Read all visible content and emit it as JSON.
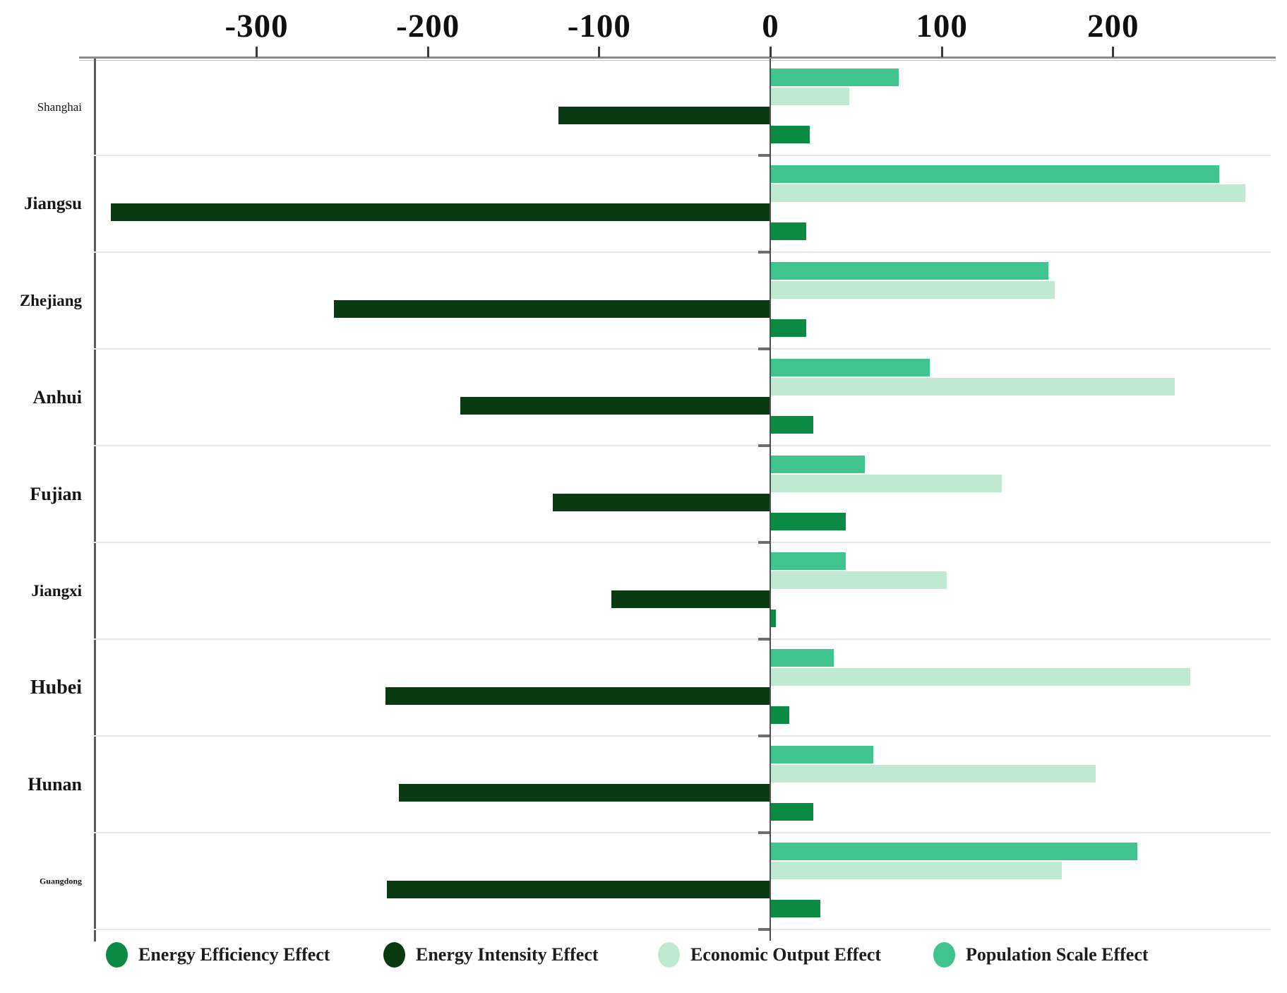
{
  "page": {
    "background": "#ffffff"
  },
  "chart_data": {
    "type": "bar",
    "orientation": "horizontal",
    "title": "",
    "xlabel": "",
    "ylabel": "",
    "categories": [
      "Shanghai",
      "Jiangsu",
      "Zhejiang",
      "Anhui",
      "Fujian",
      "Jiangxi",
      "Hubei",
      "Hunan",
      "Guangdong"
    ],
    "series": [
      {
        "name": "Energy Efficiency Effect",
        "color_key": "efficiency",
        "values": [
          23,
          21,
          21,
          25,
          44,
          3,
          11,
          25,
          29
        ]
      },
      {
        "name": "Energy Intensity Effect",
        "color_key": "intensity",
        "values": [
          -124,
          -385,
          -255,
          -181,
          -127,
          -93,
          -225,
          -217,
          -224
        ]
      },
      {
        "name": "Economic Output Effect",
        "color_key": "economic",
        "values": [
          46,
          277,
          166,
          236,
          135,
          103,
          245,
          190,
          170
        ]
      },
      {
        "name": "Population Scale Effect",
        "color_key": "population",
        "values": [
          75,
          262,
          162,
          93,
          55,
          44,
          37,
          60,
          214
        ]
      }
    ],
    "row_series_order_top_to_bottom": [
      3,
      2,
      1,
      0
    ],
    "x_ticks": [
      -300,
      -200,
      -100,
      0,
      100,
      200
    ],
    "xlim": [
      -395,
      292
    ],
    "grid": "row-separators-only",
    "legend_position": "bottom"
  },
  "legend": {
    "items": [
      {
        "label": "Energy Efficiency Effect",
        "color_key": "efficiency"
      },
      {
        "label": "Energy Intensity Effect",
        "color_key": "intensity"
      },
      {
        "label": "Economic Output Effect",
        "color_key": "economic"
      },
      {
        "label": "Population Scale Effect",
        "color_key": "population"
      }
    ]
  },
  "colors": {
    "efficiency": "#0a8a43",
    "intensity": "#093a12",
    "economic": "#c0e9d2",
    "population": "#3ec48c",
    "axis_line": "#8a8a8a",
    "zero_line": "#4f4f4f",
    "gridline": "#e7e7e7",
    "tick_text": "#101010"
  }
}
